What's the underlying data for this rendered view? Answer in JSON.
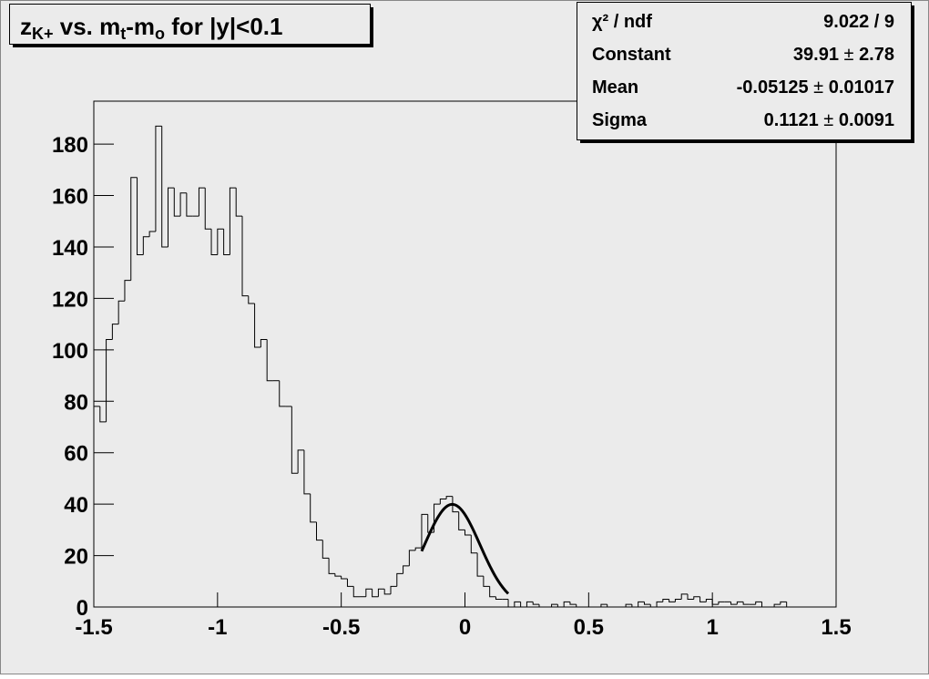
{
  "chart_data": {
    "type": "histogram",
    "title_parts": [
      {
        "text": "z"
      },
      {
        "text": "K+",
        "sub": true
      },
      {
        "text": " vs. m"
      },
      {
        "text": "t",
        "sub": true
      },
      {
        "text": "-m"
      },
      {
        "text": "o",
        "sub": true
      },
      {
        "text": " for |y|<0.1"
      }
    ],
    "bins": [
      -1.5,
      -1.475,
      -1.45,
      -1.425,
      -1.4,
      -1.375,
      -1.35,
      -1.325,
      -1.3,
      -1.275,
      -1.25,
      -1.225,
      -1.2,
      -1.175,
      -1.15,
      -1.125,
      -1.1,
      -1.075,
      -1.05,
      -1.025,
      -1,
      -0.975,
      -0.95,
      -0.925,
      -0.9,
      -0.875,
      -0.85,
      -0.825,
      -0.8,
      -0.775,
      -0.75,
      -0.725,
      -0.7,
      -0.675,
      -0.65,
      -0.625,
      -0.6,
      -0.575,
      -0.55,
      -0.525,
      -0.5,
      -0.475,
      -0.45,
      -0.425,
      -0.4,
      -0.375,
      -0.35,
      -0.325,
      -0.3,
      -0.275,
      -0.25,
      -0.225,
      -0.2,
      -0.175,
      -0.15,
      -0.125,
      -0.1,
      -0.075,
      -0.05,
      -0.025,
      0,
      0.025,
      0.05,
      0.075,
      0.1,
      0.125,
      0.15,
      0.175,
      0.2,
      0.225,
      0.25,
      0.275,
      0.3,
      0.325,
      0.35,
      0.375,
      0.4,
      0.425,
      0.45,
      0.475,
      0.5,
      0.525,
      0.55,
      0.575,
      0.6,
      0.625,
      0.65,
      0.675,
      0.7,
      0.725,
      0.75,
      0.775,
      0.8,
      0.825,
      0.85,
      0.875,
      0.9,
      0.925,
      0.95,
      0.975,
      1,
      1.025,
      1.05,
      1.075,
      1.1,
      1.125,
      1.15,
      1.175,
      1.2,
      1.225,
      1.25,
      1.275,
      1.3,
      1.325,
      1.35,
      1.375,
      1.4,
      1.425,
      1.45,
      1.475,
      1.5
    ],
    "values": [
      78,
      72,
      104,
      110,
      119,
      127,
      167,
      137,
      144,
      146,
      187,
      140,
      163,
      152,
      161,
      152,
      152,
      163,
      147,
      137,
      147,
      137,
      163,
      152,
      121,
      118,
      101,
      104,
      88,
      88,
      78,
      78,
      52,
      61,
      44,
      33,
      26,
      19,
      13,
      12,
      11,
      8,
      4,
      4,
      7,
      4,
      7,
      5,
      8,
      13,
      16,
      22,
      23,
      36,
      29,
      40,
      42,
      43,
      37,
      30,
      28,
      21,
      12,
      8,
      4,
      3,
      3,
      0,
      2,
      0,
      2,
      1,
      0,
      0,
      1,
      0,
      2,
      1,
      0,
      0,
      0,
      0,
      1,
      0,
      0,
      0,
      1,
      0,
      2,
      1,
      0,
      2,
      3,
      2,
      3,
      5,
      3,
      4,
      2,
      3,
      1,
      2,
      2,
      1,
      2,
      1,
      1,
      2,
      0,
      0,
      1,
      2,
      0,
      0,
      0,
      0,
      0,
      0,
      0,
      0
    ],
    "color": "#000000",
    "xlim": [
      -1.5,
      1.5
    ],
    "xticks": [
      -1.5,
      -1,
      -0.5,
      0,
      0.5,
      1,
      1.5
    ],
    "ylim": [
      0,
      196.7
    ],
    "yticks": [
      0,
      20,
      40,
      60,
      80,
      100,
      120,
      140,
      160,
      180
    ],
    "fit_range": [
      -0.175,
      0.175
    ],
    "stats": [
      {
        "label": "χ² / ndf",
        "value": 9.022,
        "ndf": 9
      },
      {
        "label": "Constant",
        "value": 39.91,
        "error": 2.78
      },
      {
        "label": "Mean",
        "value": -0.05125,
        "error": 0.01017
      },
      {
        "label": "Sigma",
        "value": 0.1121,
        "error": 0.0091
      }
    ]
  }
}
